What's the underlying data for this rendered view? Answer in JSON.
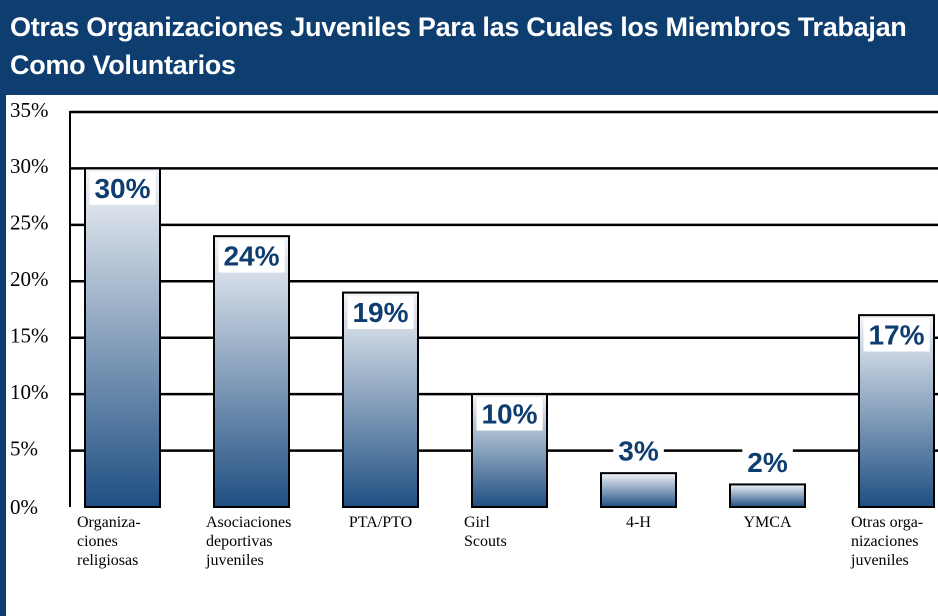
{
  "chart_data": {
    "type": "bar",
    "title": "Otras Organizaciones Juveniles Para las Cuales los Miembros Trabajan Como Voluntarios",
    "categories": [
      "Organiza-\nciones\nreligiosas",
      "Asociaciones\ndeportivas\njuveniles",
      "PTA/PTO",
      "Girl\nScouts",
      "4-H",
      "YMCA",
      "Otras orga-\nnizaciones\njuveniles"
    ],
    "values": [
      30,
      24,
      19,
      10,
      3,
      2,
      17
    ],
    "value_labels": [
      "30%",
      "24%",
      "19%",
      "10%",
      "3%",
      "2%",
      "17%"
    ],
    "color": "#1f4f82",
    "ylim": [
      0,
      35
    ],
    "yticks": [
      {
        "value": 0,
        "label": "0%"
      },
      {
        "value": 5,
        "label": "5%"
      },
      {
        "value": 10,
        "label": "10%"
      },
      {
        "value": 15,
        "label": "15%"
      },
      {
        "value": 20,
        "label": "20%"
      },
      {
        "value": 25,
        "label": "25%"
      },
      {
        "value": 30,
        "label": "30%"
      },
      {
        "value": 35,
        "label": "35%"
      }
    ],
    "grid": true
  }
}
